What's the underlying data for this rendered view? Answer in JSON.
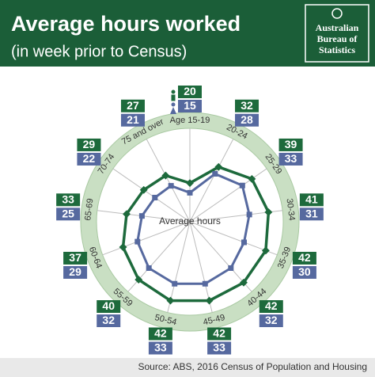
{
  "header": {
    "logo": [
      "Australian",
      "Bureau of",
      "Statistics"
    ]
  },
  "chart_data": {
    "type": "radar",
    "title": "Average hours worked",
    "subtitle": "(in week prior to Census)",
    "center_label": "Average hours",
    "source": "Source: ABS, 2016 Census of Population and Housing",
    "categories": [
      "Age 15-19",
      "20-24",
      "25-29",
      "30-34",
      "35-39",
      "40-44",
      "45-49",
      "50-54",
      "55-59",
      "60-64",
      "65-69",
      "70-74",
      "75 and over"
    ],
    "series": [
      {
        "color": "#1d6a3c",
        "values": [
          20,
          32,
          39,
          41,
          42,
          42,
          42,
          42,
          40,
          37,
          33,
          29,
          27
        ]
      },
      {
        "color": "#56699f",
        "values": [
          15,
          28,
          33,
          31,
          30,
          32,
          33,
          33,
          32,
          29,
          25,
          22,
          21
        ]
      }
    ],
    "rlim": [
      0,
      43
    ]
  }
}
